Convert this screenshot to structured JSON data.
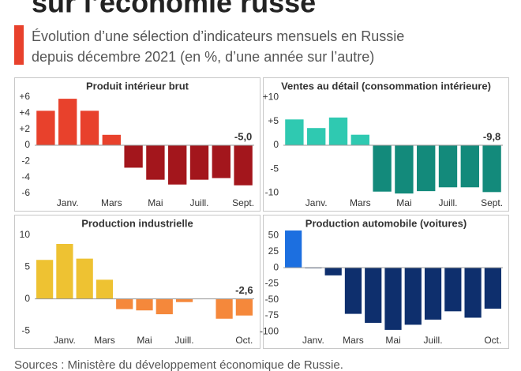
{
  "header": {
    "title": "sur l’économie russe",
    "subtitle_lines": [
      "Évolution d’une sélection d’indicateurs mensuels en Russie",
      "depuis décembre 2021 (en %, d’une année sur l’autre)"
    ]
  },
  "source": "Sources : Ministère du développement économique de Russie.",
  "chart_data": [
    {
      "type": "bar",
      "title": "Produit intérieur brut",
      "categories": [
        null,
        "Janv.",
        null,
        "Mars",
        null,
        "Mai",
        null,
        "Juill.",
        null,
        "Sept."
      ],
      "values": [
        4.3,
        5.8,
        4.3,
        1.3,
        -2.8,
        -4.3,
        -4.9,
        -4.3,
        -4.1,
        -5.0
      ],
      "value_labels": [
        null,
        null,
        null,
        null,
        null,
        null,
        null,
        null,
        null,
        "-5,0"
      ],
      "color": "#e8412c",
      "negative_color": "#a3161c",
      "ylim": [
        -6.5,
        6.5
      ],
      "yticks": [
        {
          "value": 6,
          "label": "+6"
        },
        {
          "value": 4,
          "label": "+4"
        },
        {
          "value": 2,
          "label": "+2"
        },
        0,
        -2,
        -4,
        -6
      ]
    },
    {
      "type": "bar",
      "title": "Ventes au détail (consommation intérieure)",
      "categories": [
        null,
        "Janv.",
        null,
        "Mars",
        null,
        "Mai",
        null,
        "Juill.",
        null,
        "Sept."
      ],
      "values": [
        5.4,
        3.6,
        5.8,
        2.2,
        -9.7,
        -10.1,
        -9.6,
        -8.8,
        -8.8,
        -9.8
      ],
      "value_labels": [
        null,
        null,
        null,
        null,
        null,
        null,
        null,
        null,
        null,
        "-9,8"
      ],
      "color": "#2fc9b1",
      "negative_color": "#138a7b",
      "ylim": [
        -10.9,
        10.9
      ],
      "yticks": [
        {
          "value": 10,
          "label": "+10"
        },
        {
          "value": 5,
          "label": "+5"
        },
        0,
        -5,
        -10
      ]
    },
    {
      "type": "bar",
      "title": "Production industrielle",
      "categories": [
        null,
        "Janv.",
        null,
        "Mars",
        null,
        "Mai",
        null,
        "Juill.",
        null,
        null,
        "Oct."
      ],
      "values": [
        6.1,
        8.6,
        6.3,
        3.0,
        -1.6,
        -1.8,
        -2.4,
        -0.5,
        0,
        -3.1,
        -2.6
      ],
      "value_labels": [
        null,
        null,
        null,
        null,
        null,
        null,
        null,
        null,
        null,
        null,
        "-2,6"
      ],
      "color": "#eec232",
      "negative_color": "#f5883b",
      "ylim": [
        -5.6,
        10.7
      ],
      "yticks": [
        10,
        5,
        0,
        -5
      ]
    },
    {
      "type": "bar",
      "title": "Production automobile (voitures)",
      "categories": [
        null,
        "Janv.",
        null,
        "Mars",
        null,
        "Mai",
        null,
        "Juill.",
        null,
        null,
        "Oct."
      ],
      "values": [
        58,
        -1,
        -12,
        -72,
        -86,
        -97,
        -89,
        -81,
        -68,
        -78,
        -64
      ],
      "color": "#1c6fe0",
      "negative_color": "#0e2f6d",
      "ylim": [
        -104.5,
        58
      ],
      "yticks": [
        50,
        25,
        0,
        -25,
        -50,
        -75,
        -100
      ]
    }
  ]
}
